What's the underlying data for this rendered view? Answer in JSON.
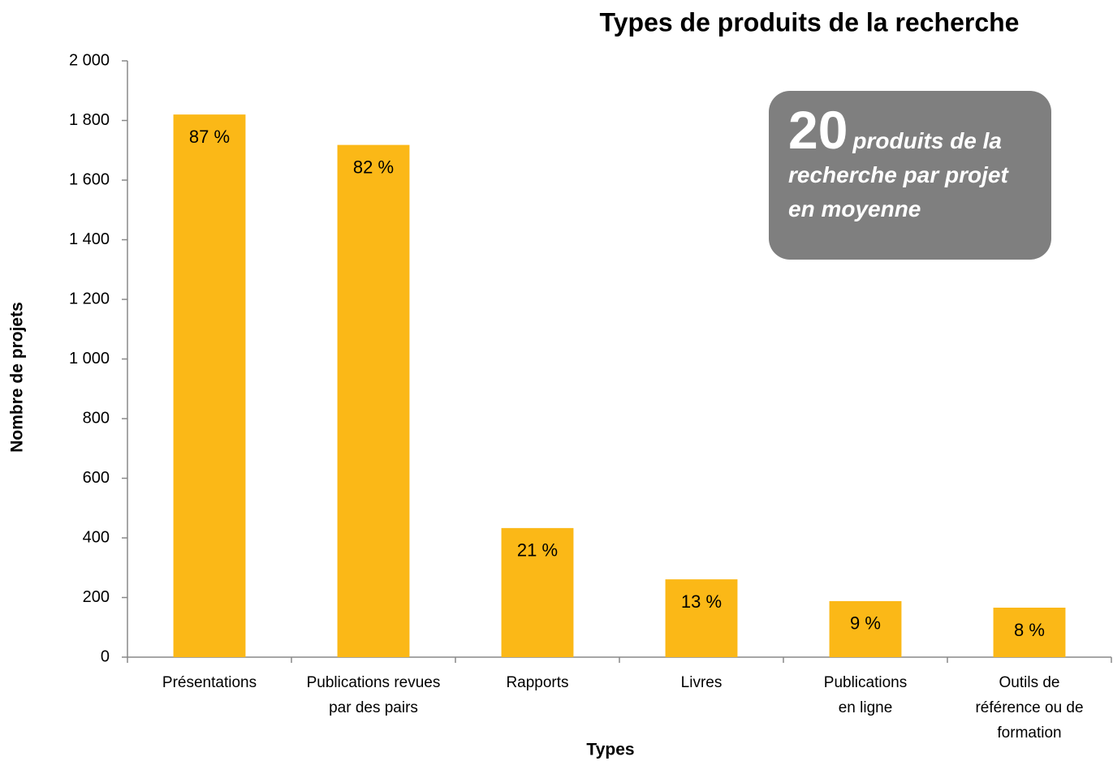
{
  "chart_data": {
    "type": "bar",
    "title": "Types de produits de la recherche",
    "x_label": "Types",
    "y_label": "Nombre de projets",
    "categories": [
      "Présentations",
      "Publications revues\npar des pairs",
      "Rapports",
      "Livres",
      "Publications\nen ligne",
      "Outils de\nréférence ou de\nformation"
    ],
    "values": [
      1820,
      1718,
      433,
      261,
      188,
      166
    ],
    "bar_labels": [
      "87 %",
      "82 %",
      "21 %",
      "13 %",
      "9 %",
      "8 %"
    ],
    "color": "#fbb817",
    "ylim": [
      0,
      2000
    ],
    "yticks": [
      0,
      200,
      400,
      600,
      800,
      {
        "value": 1000,
        "label": "1 000"
      },
      {
        "value": 1200,
        "label": "1 200"
      },
      {
        "value": 1400,
        "label": "1 400"
      },
      {
        "value": 1600,
        "label": "1 600"
      },
      {
        "value": 1800,
        "label": "1 800"
      },
      {
        "value": 2000,
        "label": "2 000"
      }
    ],
    "grid": false,
    "callout": {
      "value": 20,
      "text": "produits de la recherche par projet en moyenne"
    }
  }
}
